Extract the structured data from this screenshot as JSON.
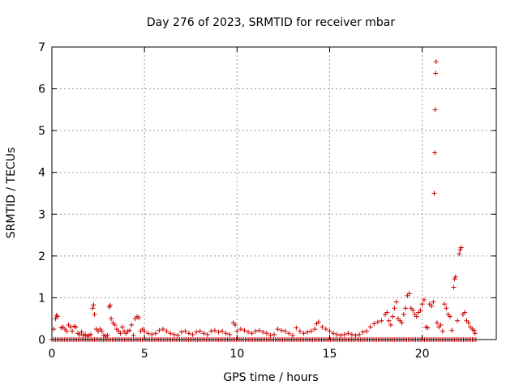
{
  "chart_data": {
    "type": "scatter",
    "title": "Day 276 of 2023, SRMTID for receiver mbar",
    "xlabel": "GPS time / hours",
    "ylabel": "SRMTID / TECUs",
    "xlim": [
      0,
      24
    ],
    "ylim": [
      0,
      7
    ],
    "x_ticks": [
      0,
      5,
      10,
      15,
      20
    ],
    "y_ticks": [
      0,
      1,
      2,
      3,
      4,
      5,
      6,
      7
    ],
    "grid": true,
    "legend": "none",
    "marker": "plus",
    "series_color": "#cc0000",
    "series": [
      {
        "points": [
          [
            0.1,
            0.25
          ],
          [
            0.2,
            0.5
          ],
          [
            0.25,
            0.58
          ],
          [
            0.3,
            0.55
          ],
          [
            0.5,
            0.28
          ],
          [
            0.6,
            0.3
          ],
          [
            0.7,
            0.25
          ],
          [
            0.8,
            0.2
          ],
          [
            0.9,
            0.35
          ],
          [
            1.0,
            0.3
          ],
          [
            1.1,
            0.2
          ],
          [
            1.2,
            0.32
          ],
          [
            1.3,
            0.3
          ],
          [
            1.4,
            0.15
          ],
          [
            1.5,
            0.12
          ],
          [
            1.6,
            0.18
          ],
          [
            1.7,
            0.1
          ],
          [
            1.8,
            0.12
          ],
          [
            1.9,
            0.08
          ],
          [
            2.0,
            0.1
          ],
          [
            2.1,
            0.12
          ],
          [
            2.2,
            0.75
          ],
          [
            2.25,
            0.83
          ],
          [
            2.3,
            0.6
          ],
          [
            2.4,
            0.25
          ],
          [
            2.5,
            0.2
          ],
          [
            2.6,
            0.25
          ],
          [
            2.7,
            0.2
          ],
          [
            2.8,
            0.1
          ],
          [
            2.9,
            0.08
          ],
          [
            3.0,
            0.1
          ],
          [
            3.1,
            0.78
          ],
          [
            3.15,
            0.82
          ],
          [
            3.2,
            0.5
          ],
          [
            3.3,
            0.4
          ],
          [
            3.4,
            0.35
          ],
          [
            3.5,
            0.25
          ],
          [
            3.6,
            0.2
          ],
          [
            3.7,
            0.15
          ],
          [
            3.8,
            0.3
          ],
          [
            3.9,
            0.2
          ],
          [
            4.0,
            0.15
          ],
          [
            4.1,
            0.2
          ],
          [
            4.2,
            0.22
          ],
          [
            4.3,
            0.35
          ],
          [
            4.4,
            0.1
          ],
          [
            4.5,
            0.5
          ],
          [
            4.6,
            0.55
          ],
          [
            4.7,
            0.52
          ],
          [
            4.8,
            0.2
          ],
          [
            4.9,
            0.25
          ],
          [
            5.0,
            0.2
          ],
          [
            5.2,
            0.15
          ],
          [
            5.4,
            0.12
          ],
          [
            5.6,
            0.15
          ],
          [
            5.8,
            0.22
          ],
          [
            6.0,
            0.25
          ],
          [
            6.2,
            0.2
          ],
          [
            6.4,
            0.15
          ],
          [
            6.6,
            0.12
          ],
          [
            6.8,
            0.1
          ],
          [
            7.0,
            0.18
          ],
          [
            7.2,
            0.2
          ],
          [
            7.4,
            0.15
          ],
          [
            7.6,
            0.12
          ],
          [
            7.8,
            0.18
          ],
          [
            8.0,
            0.2
          ],
          [
            8.2,
            0.15
          ],
          [
            8.4,
            0.12
          ],
          [
            8.6,
            0.2
          ],
          [
            8.8,
            0.22
          ],
          [
            9.0,
            0.18
          ],
          [
            9.2,
            0.2
          ],
          [
            9.4,
            0.15
          ],
          [
            9.6,
            0.12
          ],
          [
            9.8,
            0.4
          ],
          [
            9.9,
            0.35
          ],
          [
            10.0,
            0.2
          ],
          [
            10.2,
            0.25
          ],
          [
            10.4,
            0.22
          ],
          [
            10.6,
            0.18
          ],
          [
            10.8,
            0.15
          ],
          [
            11.0,
            0.2
          ],
          [
            11.2,
            0.22
          ],
          [
            11.4,
            0.18
          ],
          [
            11.6,
            0.15
          ],
          [
            11.8,
            0.1
          ],
          [
            12.0,
            0.12
          ],
          [
            12.2,
            0.25
          ],
          [
            12.4,
            0.22
          ],
          [
            12.6,
            0.2
          ],
          [
            12.8,
            0.15
          ],
          [
            13.0,
            0.1
          ],
          [
            13.2,
            0.28
          ],
          [
            13.4,
            0.2
          ],
          [
            13.6,
            0.15
          ],
          [
            13.8,
            0.18
          ],
          [
            14.0,
            0.2
          ],
          [
            14.2,
            0.25
          ],
          [
            14.3,
            0.38
          ],
          [
            14.4,
            0.42
          ],
          [
            14.6,
            0.3
          ],
          [
            14.8,
            0.25
          ],
          [
            15.0,
            0.2
          ],
          [
            15.2,
            0.15
          ],
          [
            15.4,
            0.12
          ],
          [
            15.6,
            0.1
          ],
          [
            15.8,
            0.12
          ],
          [
            16.0,
            0.15
          ],
          [
            16.2,
            0.12
          ],
          [
            16.4,
            0.1
          ],
          [
            16.6,
            0.12
          ],
          [
            16.8,
            0.18
          ],
          [
            17.0,
            0.2
          ],
          [
            17.2,
            0.3
          ],
          [
            17.4,
            0.38
          ],
          [
            17.6,
            0.42
          ],
          [
            17.8,
            0.45
          ],
          [
            18.0,
            0.6
          ],
          [
            18.1,
            0.65
          ],
          [
            18.2,
            0.45
          ],
          [
            18.3,
            0.35
          ],
          [
            18.4,
            0.55
          ],
          [
            18.5,
            0.75
          ],
          [
            18.6,
            0.9
          ],
          [
            18.7,
            0.5
          ],
          [
            18.8,
            0.45
          ],
          [
            18.9,
            0.4
          ],
          [
            19.0,
            0.6
          ],
          [
            19.1,
            0.75
          ],
          [
            19.2,
            1.05
          ],
          [
            19.3,
            1.1
          ],
          [
            19.4,
            0.75
          ],
          [
            19.5,
            0.7
          ],
          [
            19.6,
            0.6
          ],
          [
            19.7,
            0.55
          ],
          [
            19.8,
            0.65
          ],
          [
            19.9,
            0.7
          ],
          [
            20.0,
            0.85
          ],
          [
            20.1,
            0.95
          ],
          [
            20.2,
            0.3
          ],
          [
            20.3,
            0.28
          ],
          [
            20.4,
            0.85
          ],
          [
            20.5,
            0.8
          ],
          [
            20.6,
            0.9
          ],
          [
            20.65,
            3.5
          ],
          [
            20.68,
            4.47
          ],
          [
            20.7,
            5.5
          ],
          [
            20.72,
            6.37
          ],
          [
            20.75,
            6.65
          ],
          [
            20.8,
            0.4
          ],
          [
            20.9,
            0.3
          ],
          [
            21.0,
            0.35
          ],
          [
            21.1,
            0.2
          ],
          [
            21.2,
            0.85
          ],
          [
            21.3,
            0.75
          ],
          [
            21.4,
            0.6
          ],
          [
            21.5,
            0.55
          ],
          [
            21.6,
            0.22
          ],
          [
            21.7,
            1.25
          ],
          [
            21.75,
            1.45
          ],
          [
            21.8,
            1.5
          ],
          [
            21.9,
            0.45
          ],
          [
            22.0,
            2.05
          ],
          [
            22.05,
            2.15
          ],
          [
            22.1,
            2.2
          ],
          [
            22.2,
            0.6
          ],
          [
            22.3,
            0.65
          ],
          [
            22.4,
            0.45
          ],
          [
            22.5,
            0.4
          ],
          [
            22.6,
            0.3
          ],
          [
            22.7,
            0.25
          ],
          [
            22.8,
            0.22
          ],
          [
            22.85,
            0.15
          ]
        ]
      }
    ],
    "zero_band": {
      "x_start": 0,
      "x_end": 22.9,
      "y": 0,
      "count": 240
    }
  }
}
